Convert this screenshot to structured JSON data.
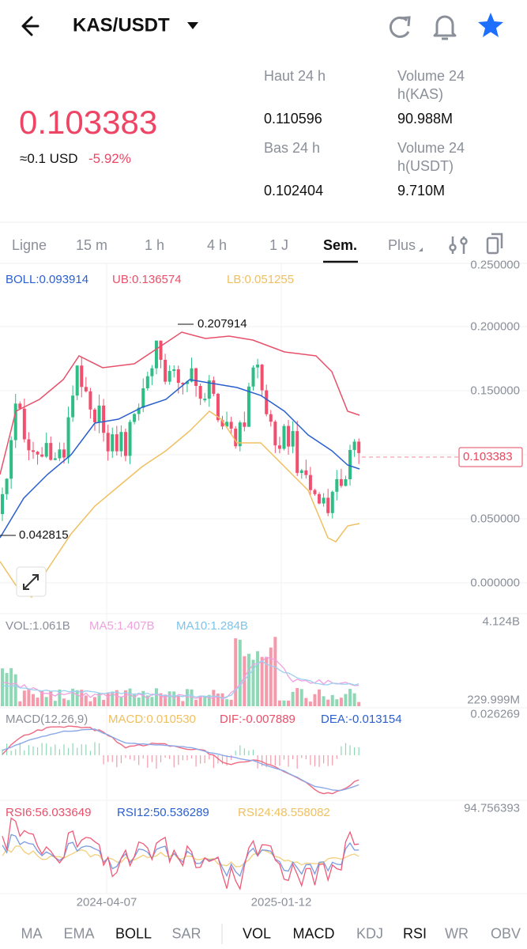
{
  "header": {
    "pair": "KAS/USDT"
  },
  "ticker": {
    "price": "0.103383",
    "usd": "≈0.1 USD",
    "change": "-5.92%",
    "stats": [
      {
        "label": "Haut 24 h",
        "value": "0.110596"
      },
      {
        "label": "Volume 24 h(KAS)",
        "value": "90.988M"
      },
      {
        "label": "Bas 24 h",
        "value": "0.102404"
      },
      {
        "label": "Volume 24 h(USDT)",
        "value": "9.710M"
      }
    ]
  },
  "intervals": [
    "Ligne",
    "15 m",
    "1 h",
    "4 h",
    "1 J",
    "Sem.",
    "Plus"
  ],
  "chart": {
    "boll": "BOLL:0.093914",
    "ub": "UB:0.136574",
    "lb": "LB:0.051255",
    "price_axis": [
      "0.250000",
      "0.200000",
      "0.150000",
      "0.050000",
      "0.000000"
    ],
    "high_marker": "0.207914",
    "low_marker": "0.042815",
    "last_price": "0.103383"
  },
  "volume": {
    "vol": "VOL:1.061B",
    "ma5": "MA5:1.407B",
    "ma10": "MA10:1.284B",
    "max": "4.124B",
    "min": "229.999M"
  },
  "macd": {
    "name": "MACD(12,26,9)",
    "macd": "MACD:0.010530",
    "dif": "DIF:-0.007889",
    "dea": "DEA:-0.013154",
    "max": "0.026269"
  },
  "rsi": {
    "rsi6": "RSI6:56.033649",
    "rsi12": "RSI12:50.536289",
    "rsi24": "RSI24:48.558082",
    "max": "94.756393"
  },
  "dates": [
    "2024-04-07",
    "2025-01-12"
  ],
  "indicators": [
    "MA",
    "EMA",
    "BOLL",
    "SAR",
    "VOL",
    "MACD",
    "KDJ",
    "RSI",
    "WR",
    "OBV"
  ]
}
